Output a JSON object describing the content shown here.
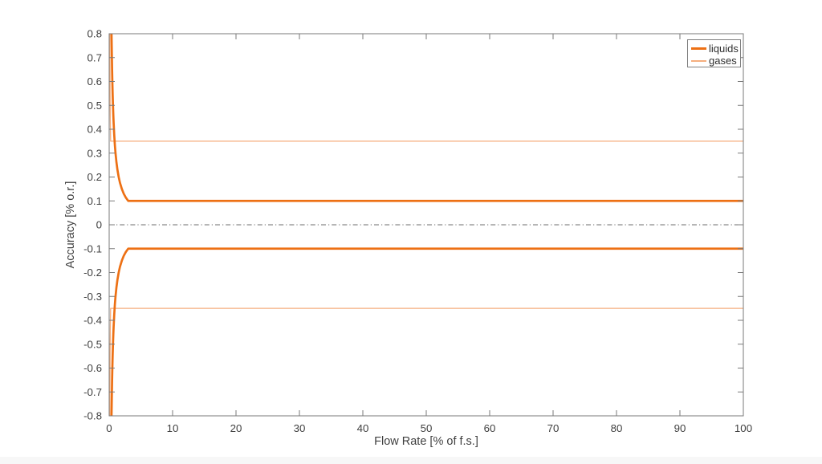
{
  "chart_data": {
    "type": "line",
    "title": "",
    "xlabel": "Flow Rate [% of f.s.]",
    "ylabel": "Accuracy [% o.r.]",
    "xlim": [
      0,
      100
    ],
    "ylim": [
      -0.8,
      0.8
    ],
    "grid": false,
    "box": true,
    "tick_direction": "in",
    "xticks": [
      0,
      10,
      20,
      30,
      40,
      50,
      60,
      70,
      80,
      90,
      100
    ],
    "xtick_labels": [
      "0",
      "10",
      "20",
      "30",
      "40",
      "50",
      "60",
      "70",
      "80",
      "90",
      "100"
    ],
    "yticks": [
      -0.8,
      -0.7,
      -0.6,
      -0.5,
      -0.4,
      -0.3,
      -0.2,
      -0.1,
      0,
      0.1,
      0.2,
      0.3,
      0.4,
      0.5,
      0.6,
      0.7,
      0.8
    ],
    "ytick_labels": [
      "-0.8",
      "-0.7",
      "-0.6",
      "-0.5",
      "-0.4",
      "-0.3",
      "-0.2",
      "-0.1",
      "0",
      "0.1",
      "0.2",
      "0.3",
      "0.4",
      "0.5",
      "0.6",
      "0.7",
      "0.8"
    ],
    "colors": {
      "liquids": "#ED7014",
      "gases": "#F5AE7E",
      "axis": "#7a7a7a",
      "tick_label": "#404040",
      "zero_line": "#6e6e6e"
    },
    "zero_line": {
      "y": 0,
      "style": "dash-dot",
      "color": "#6e6e6e"
    },
    "series": [
      {
        "name": "gases-upper",
        "legend": "gases",
        "color": "#F5AE7E",
        "width": 1.3,
        "x": [
          0.1,
          0.105,
          0.11,
          0.12,
          0.13,
          0.145,
          0.16,
          0.18,
          0.2,
          0.229,
          0.26,
          0.3,
          0.4,
          0.6,
          1,
          2,
          5,
          10,
          50,
          100
        ],
        "y": [
          0.8,
          0.762,
          0.727,
          0.667,
          0.615,
          0.552,
          0.5,
          0.444,
          0.4,
          0.35,
          0.35,
          0.35,
          0.35,
          0.35,
          0.35,
          0.35,
          0.35,
          0.35,
          0.35,
          0.35
        ]
      },
      {
        "name": "gases-lower",
        "legend": "gases",
        "color": "#F5AE7E",
        "width": 1.3,
        "x": [
          0.1,
          0.105,
          0.11,
          0.12,
          0.13,
          0.145,
          0.16,
          0.18,
          0.2,
          0.229,
          0.26,
          0.3,
          0.4,
          0.6,
          1,
          2,
          5,
          10,
          50,
          100
        ],
        "y": [
          -0.8,
          -0.762,
          -0.727,
          -0.667,
          -0.615,
          -0.552,
          -0.5,
          -0.444,
          -0.4,
          -0.35,
          -0.35,
          -0.35,
          -0.35,
          -0.35,
          -0.35,
          -0.35,
          -0.35,
          -0.35,
          -0.35,
          -0.35
        ]
      },
      {
        "name": "liquids-upper",
        "legend": "liquids",
        "color": "#ED7014",
        "width": 2.7,
        "x": [
          0.37,
          0.4,
          0.43,
          0.46,
          0.5,
          0.55,
          0.6,
          0.65,
          0.7,
          0.8,
          0.9,
          1.0,
          1.15,
          1.3,
          1.5,
          1.7,
          2.0,
          2.3,
          2.6,
          3.0,
          3.5,
          4,
          5,
          10,
          20,
          50,
          100
        ],
        "y": [
          0.8,
          0.75,
          0.698,
          0.652,
          0.6,
          0.545,
          0.5,
          0.462,
          0.429,
          0.375,
          0.333,
          0.3,
          0.261,
          0.231,
          0.2,
          0.176,
          0.15,
          0.13,
          0.115,
          0.1,
          0.1,
          0.1,
          0.1,
          0.1,
          0.1,
          0.1,
          0.1
        ]
      },
      {
        "name": "liquids-lower",
        "legend": "liquids",
        "color": "#ED7014",
        "width": 2.7,
        "x": [
          0.37,
          0.4,
          0.43,
          0.46,
          0.5,
          0.55,
          0.6,
          0.65,
          0.7,
          0.8,
          0.9,
          1.0,
          1.15,
          1.3,
          1.5,
          1.7,
          2.0,
          2.3,
          2.6,
          3.0,
          3.5,
          4,
          5,
          10,
          20,
          50,
          100
        ],
        "y": [
          -0.8,
          -0.75,
          -0.698,
          -0.652,
          -0.6,
          -0.545,
          -0.5,
          -0.462,
          -0.429,
          -0.375,
          -0.333,
          -0.3,
          -0.261,
          -0.231,
          -0.2,
          -0.176,
          -0.15,
          -0.13,
          -0.115,
          -0.1,
          -0.1,
          -0.1,
          -0.1,
          -0.1,
          -0.1,
          -0.1,
          -0.1
        ]
      }
    ],
    "legend_entries": [
      {
        "label": "liquids",
        "color": "#ED7014",
        "thickness": 3
      },
      {
        "label": "gases",
        "color": "#F5AE7E",
        "thickness": 2
      }
    ],
    "legend_position": "northeast"
  }
}
